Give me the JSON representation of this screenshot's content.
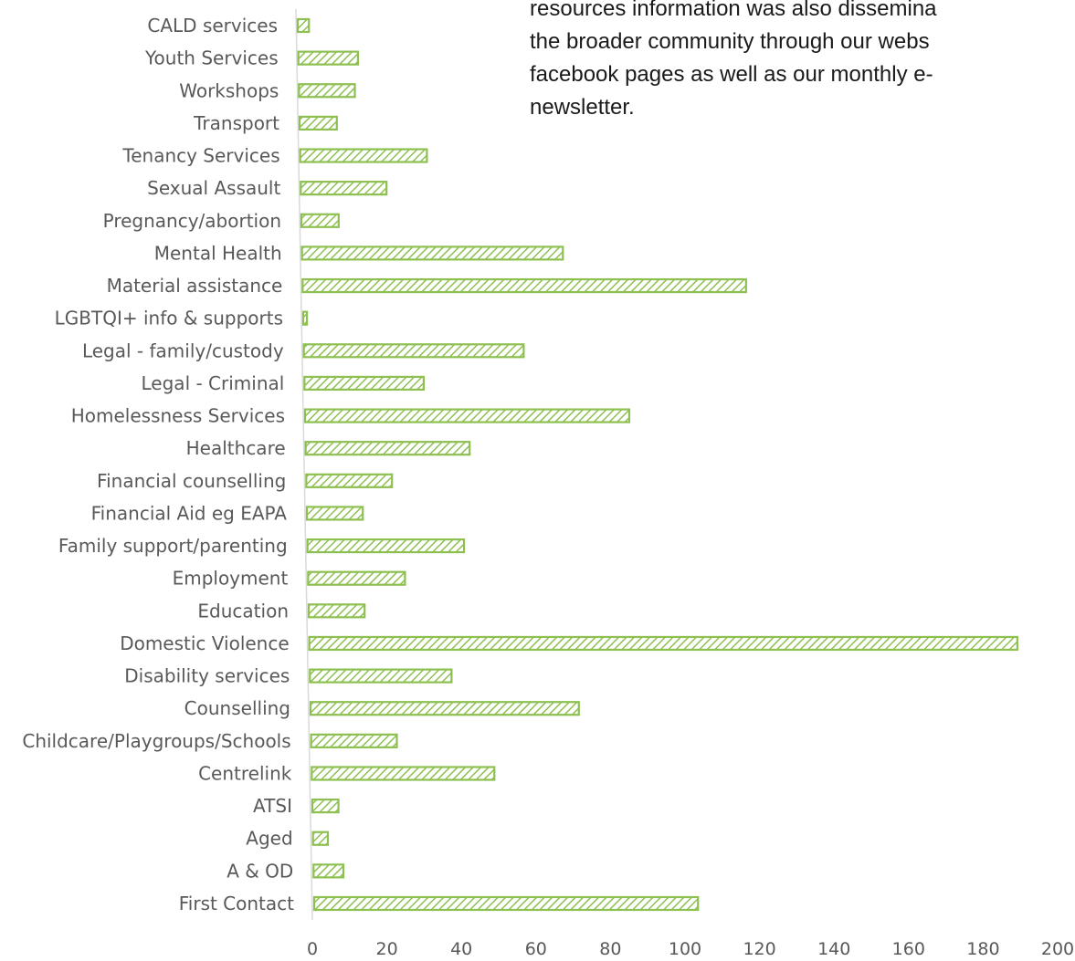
{
  "side_text": {
    "lines": [
      "resources information was also dissemina",
      "the broader community through our webs",
      "facebook pages as well as our monthly e-",
      "newsletter."
    ]
  },
  "chart_data": {
    "type": "bar",
    "orientation": "horizontal",
    "title": "",
    "xlabel": "",
    "ylabel": "",
    "xlim": [
      0,
      200
    ],
    "x_ticks": [
      "0",
      "20",
      "40",
      "60",
      "80",
      "100",
      "120",
      "140",
      "160",
      "180",
      "200"
    ],
    "grid": false,
    "legend": "none",
    "bar_color": "#8dc050",
    "bar_pattern": "diagonal-hatch",
    "categories": [
      "CALD services",
      "Youth Services",
      "Workshops",
      "Transport",
      "Tenancy Services",
      "Sexual Assault",
      "Pregnancy/abortion",
      "Mental Health",
      "Material assistance",
      "LGBTQI+ info & supports",
      "Legal - family/custody",
      "Legal - Criminal",
      "Homelessness Services",
      "Healthcare",
      "Financial counselling",
      "Financial Aid eg EAPA",
      "Family support/parenting",
      "Employment",
      "Education",
      "Domestic Violence",
      "Disability services",
      "Counselling",
      "Childcare/Playgroups/Schools",
      "Centrelink",
      "ATSI",
      "Aged",
      "A & OD",
      "First Contact"
    ],
    "values": [
      3,
      16,
      15,
      10,
      34,
      23,
      10,
      70,
      119,
      1,
      59,
      32,
      87,
      44,
      23,
      15,
      42,
      26,
      15,
      190,
      38,
      72,
      23,
      49,
      7,
      4,
      8,
      103
    ]
  }
}
